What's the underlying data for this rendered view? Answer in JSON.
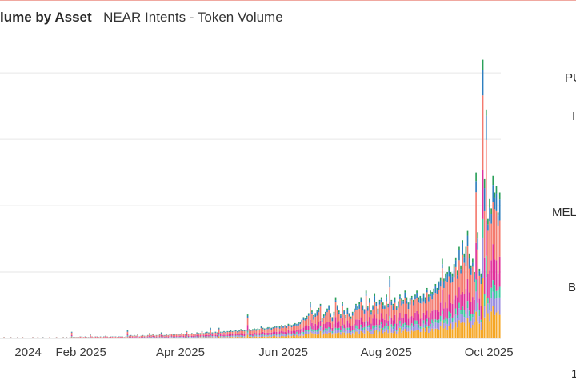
{
  "header": {
    "title": "lume by Asset",
    "subtitle": "NEAR Intents - Token Volume"
  },
  "right_labels": [
    "PU",
    "I",
    "MEL",
    "B",
    "1"
  ],
  "chart_data": {
    "type": "bar",
    "stacked": true,
    "title": "lume by Asset",
    "subtitle": "NEAR Intents - Token Volume",
    "x_ticks": [
      "2024",
      "Feb 2025",
      "Apr 2025",
      "Jun 2025",
      "Aug 2025",
      "Oct 2025"
    ],
    "x_range": [
      "2024-12-15",
      "2025-10-08"
    ],
    "y_range": [
      0,
      4.4
    ],
    "y_gridlines": [
      1,
      2,
      3,
      4
    ],
    "y_tick_labels_visible": false,
    "grid": true,
    "series_colors": [
      "#f5a623",
      "#9c8fe0",
      "#3cc9a0",
      "#e0309a",
      "#f47a6e",
      "#2e7fbf",
      "#2aa05a"
    ],
    "series_shares": [
      0.18,
      0.1,
      0.07,
      0.2,
      0.3,
      0.1,
      0.05
    ],
    "daily_totals": [
      0.01,
      0.01,
      0.02,
      0.01,
      0.01,
      0.01,
      0.02,
      0.01,
      0.01,
      0.01,
      0.02,
      0.01,
      0.01,
      0.02,
      0.01,
      0.01,
      0.01,
      0.01,
      0.01,
      0.02,
      0.01,
      0.01,
      0.02,
      0.01,
      0.01,
      0.02,
      0.01,
      0.01,
      0.01,
      0.02,
      0.01,
      0.01,
      0.01,
      0.02,
      0.01,
      0.01,
      0.01,
      0.02,
      0.01,
      0.02,
      0.01,
      0.02,
      0.1,
      0.02,
      0.02,
      0.02,
      0.02,
      0.03,
      0.03,
      0.02,
      0.03,
      0.02,
      0.02,
      0.06,
      0.03,
      0.02,
      0.03,
      0.03,
      0.02,
      0.03,
      0.02,
      0.03,
      0.04,
      0.03,
      0.02,
      0.03,
      0.03,
      0.03,
      0.03,
      0.02,
      0.03,
      0.03,
      0.03,
      0.02,
      0.03,
      0.12,
      0.04,
      0.05,
      0.04,
      0.05,
      0.04,
      0.06,
      0.03,
      0.04,
      0.05,
      0.04,
      0.04,
      0.05,
      0.08,
      0.05,
      0.06,
      0.04,
      0.05,
      0.05,
      0.06,
      0.09,
      0.05,
      0.05,
      0.06,
      0.05,
      0.06,
      0.07,
      0.06,
      0.06,
      0.07,
      0.06,
      0.07,
      0.08,
      0.07,
      0.06,
      0.11,
      0.07,
      0.07,
      0.08,
      0.07,
      0.07,
      0.09,
      0.08,
      0.08,
      0.11,
      0.08,
      0.09,
      0.1,
      0.09,
      0.16,
      0.09,
      0.09,
      0.1,
      0.09,
      0.16,
      0.1,
      0.1,
      0.11,
      0.1,
      0.11,
      0.11,
      0.12,
      0.11,
      0.12,
      0.12,
      0.11,
      0.12,
      0.14,
      0.13,
      0.12,
      0.13,
      0.36,
      0.14,
      0.13,
      0.14,
      0.15,
      0.14,
      0.15,
      0.14,
      0.18,
      0.16,
      0.15,
      0.16,
      0.17,
      0.17,
      0.16,
      0.17,
      0.18,
      0.19,
      0.18,
      0.18,
      0.2,
      0.19,
      0.2,
      0.19,
      0.22,
      0.21,
      0.2,
      0.21,
      0.23,
      0.22,
      0.24,
      0.25,
      0.28,
      0.32,
      0.3,
      0.34,
      0.38,
      0.55,
      0.42,
      0.35,
      0.38,
      0.42,
      0.46,
      0.52,
      0.3,
      0.36,
      0.4,
      0.45,
      0.5,
      0.38,
      0.32,
      0.4,
      0.62,
      0.5,
      0.42,
      0.36,
      0.55,
      0.42,
      0.35,
      0.46,
      0.38,
      0.33,
      0.4,
      0.45,
      0.52,
      0.48,
      0.55,
      0.62,
      0.5,
      0.44,
      0.72,
      0.48,
      0.6,
      0.42,
      0.5,
      0.68,
      0.55,
      0.45,
      0.58,
      0.62,
      0.54,
      0.5,
      0.66,
      0.52,
      0.94,
      0.58,
      0.52,
      0.62,
      0.48,
      0.56,
      0.66,
      0.6,
      0.58,
      0.72,
      0.62,
      0.54,
      0.6,
      0.64,
      0.58,
      0.66,
      0.72,
      0.62,
      0.64,
      0.6,
      0.68,
      0.62,
      0.76,
      0.66,
      0.72,
      0.7,
      0.75,
      0.82,
      0.76,
      0.86,
      0.92,
      1.2,
      0.9,
      0.98,
      1.0,
      1.08,
      1.0,
      0.98,
      1.12,
      1.22,
      1.02,
      1.38,
      1.1,
      1.48,
      1.28,
      1.38,
      1.62,
      1.28,
      1.1,
      1.2,
      1.0,
      2.5,
      1.6,
      1.05,
      0.98,
      4.2,
      2.4,
      3.45,
      1.8,
      2.1,
      1.96,
      2.45,
      2.2,
      2.3,
      1.9,
      2.2
    ]
  }
}
